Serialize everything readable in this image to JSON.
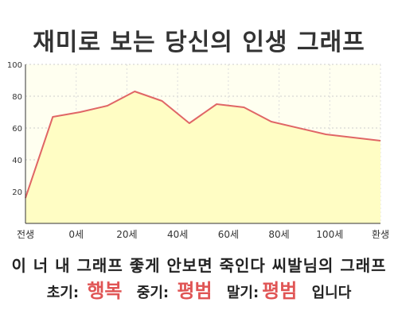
{
  "title": "재미로 보는 당신의 인생 그래프",
  "caption": "이 너 내 그래프 좋게 안보면 죽인다 씨발님의 그래프",
  "summary": {
    "early_label": "초기:",
    "early_value": "행복",
    "middle_label": "중기:",
    "middle_value": "평범",
    "late_label": "말기:",
    "late_value": "평범",
    "suffix": "입니다"
  },
  "colors": {
    "line": "#e06666",
    "fill": "#fffdc4",
    "plot_bg": "#fffff0",
    "accent_text": "#e05555"
  },
  "chart_data": {
    "type": "area",
    "x_categories": [
      "전생",
      "0세",
      "20세",
      "40세",
      "60세",
      "80세",
      "100세",
      "환생"
    ],
    "points": [
      {
        "x": -10,
        "y": 16
      },
      {
        "x": 0,
        "y": 67
      },
      {
        "x": 10,
        "y": 70
      },
      {
        "x": 20,
        "y": 74
      },
      {
        "x": 30,
        "y": 83
      },
      {
        "x": 40,
        "y": 77
      },
      {
        "x": 50,
        "y": 63
      },
      {
        "x": 60,
        "y": 75
      },
      {
        "x": 70,
        "y": 73
      },
      {
        "x": 80,
        "y": 64
      },
      {
        "x": 100,
        "y": 56
      },
      {
        "x": 120,
        "y": 52
      }
    ],
    "y_ticks": [
      20,
      40,
      60,
      80,
      100
    ],
    "ylim": [
      0,
      100
    ],
    "xlim": [
      -10,
      120
    ],
    "grid": true,
    "legend": "none"
  }
}
